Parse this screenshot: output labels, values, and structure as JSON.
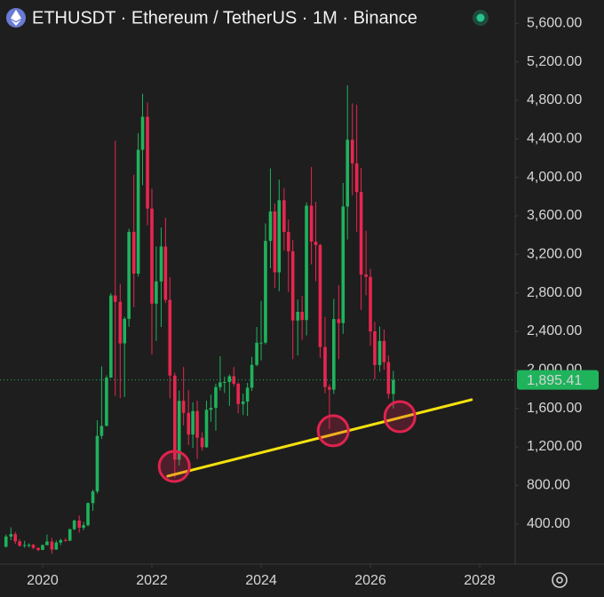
{
  "chart_data": {
    "type": "candlestick",
    "title": "ETHUSDT · Ethereum / TetherUS · 1M · Binance",
    "up_color": "#1fb35c",
    "down_color": "#e8264f",
    "xlim": [
      2019.22,
      2028.65
    ],
    "xticks": [
      2020,
      2022,
      2024,
      2026,
      2028
    ],
    "ylim": [
      0,
      5843
    ],
    "yticks": [
      {
        "value": 400,
        "label": "400.00"
      },
      {
        "value": 800,
        "label": "800.00"
      },
      {
        "value": 1200,
        "label": "1,200.00"
      },
      {
        "value": 1600,
        "label": "1,600.00"
      },
      {
        "value": 2000,
        "label": "2,000.00"
      },
      {
        "value": 2400,
        "label": "2,400.00"
      },
      {
        "value": 2800,
        "label": "2,800.00"
      },
      {
        "value": 3200,
        "label": "3,200.00"
      },
      {
        "value": 3600,
        "label": "3,600.00"
      },
      {
        "value": 4000,
        "label": "4,000.00"
      },
      {
        "value": 4400,
        "label": "4,400.00"
      },
      {
        "value": 4800,
        "label": "4,800.00"
      },
      {
        "value": 5200,
        "label": "5,200.00"
      },
      {
        "value": 5600,
        "label": "5,600.00"
      }
    ],
    "x": [
      2019.33,
      2019.42,
      2019.5,
      2019.58,
      2019.67,
      2019.75,
      2019.83,
      2019.92,
      2020.0,
      2020.08,
      2020.17,
      2020.25,
      2020.33,
      2020.42,
      2020.5,
      2020.58,
      2020.67,
      2020.75,
      2020.83,
      2020.92,
      2021.0,
      2021.08,
      2021.17,
      2021.25,
      2021.33,
      2021.42,
      2021.5,
      2021.58,
      2021.67,
      2021.75,
      2021.83,
      2021.92,
      2022.0,
      2022.08,
      2022.17,
      2022.25,
      2022.33,
      2022.42,
      2022.5,
      2022.58,
      2022.67,
      2022.75,
      2022.83,
      2022.92,
      2023.0,
      2023.08,
      2023.17,
      2023.25,
      2023.33,
      2023.42,
      2023.5,
      2023.58,
      2023.67,
      2023.75,
      2023.83,
      2023.92,
      2024.0,
      2024.08,
      2024.17,
      2024.25,
      2024.33,
      2024.42,
      2024.5,
      2024.58,
      2024.67,
      2024.75,
      2024.83,
      2024.92,
      2025.0,
      2025.08,
      2025.17,
      2025.25,
      2025.33,
      2025.42,
      2025.5,
      2025.58,
      2025.67,
      2025.75,
      2025.83,
      2025.92,
      2026.0,
      2026.08,
      2026.17,
      2026.25,
      2026.33,
      2026.42
    ],
    "open": [
      162,
      268,
      293,
      218,
      172,
      180,
      182,
      151,
      129,
      179,
      217,
      133,
      206,
      231,
      225,
      345,
      434,
      360,
      386,
      616,
      737,
      1314,
      1417,
      1919,
      2773,
      2707,
      2275,
      2530,
      3434,
      3000,
      4287,
      4630,
      3676,
      2688,
      2919,
      3282,
      2727,
      1941,
      1067,
      1678,
      1553,
      1328,
      1572,
      1295,
      1196,
      1585,
      1605,
      1821,
      1870,
      1874,
      1934,
      1856,
      1645,
      1671,
      1815,
      2052,
      2282,
      2283,
      3340,
      3646,
      3014,
      3763,
      3433,
      3232,
      2513,
      2603,
      2518,
      3706,
      3332,
      3297,
      2237,
      1822,
      1794,
      2528,
      2486,
      3697,
      4391,
      4145,
      3848,
      2991,
      2967,
      2400,
      2050,
      2300,
      2080,
      1750
    ],
    "high": [
      290,
      364,
      316,
      240,
      224,
      198,
      194,
      154,
      186,
      288,
      253,
      227,
      246,
      253,
      348,
      444,
      488,
      420,
      622,
      755,
      1476,
      2036,
      1943,
      2798,
      4380,
      2893,
      2551,
      3466,
      4027,
      4460,
      4868,
      4778,
      3883,
      3282,
      3479,
      3581,
      2964,
      1971,
      1785,
      2030,
      1789,
      1664,
      1680,
      1352,
      1680,
      1743,
      1857,
      2142,
      1930,
      1951,
      2029,
      1870,
      1753,
      1865,
      2135,
      2445,
      2717,
      3522,
      4093,
      3730,
      3976,
      3887,
      3563,
      3350,
      2730,
      2769,
      3740,
      4107,
      3745,
      3310,
      2550,
      1850,
      2738,
      2880,
      3941,
      4956,
      4769,
      4755,
      4100,
      3447,
      3050,
      2500,
      2450,
      2420,
      2150,
      1990
    ],
    "low": [
      155,
      230,
      190,
      165,
      152,
      155,
      135,
      116,
      128,
      178,
      90,
      130,
      179,
      216,
      222,
      334,
      309,
      335,
      373,
      535,
      715,
      1282,
      1458,
      1937,
      1728,
      1707,
      1718,
      2447,
      2652,
      2970,
      3919,
      3503,
      2159,
      2300,
      2446,
      2694,
      1703,
      880,
      1006,
      1422,
      1220,
      1190,
      1073,
      1160,
      1191,
      1461,
      1368,
      1785,
      1760,
      1626,
      1830,
      1550,
      1531,
      1521,
      1781,
      2038,
      2100,
      2265,
      3056,
      2852,
      2817,
      3240,
      2810,
      2111,
      2150,
      2310,
      2357,
      3096,
      2920,
      2125,
      1755,
      1385,
      1750,
      2112,
      2373,
      3355,
      3815,
      3435,
      2623,
      2775,
      2250,
      1900,
      1980,
      2000,
      1700,
      1600
    ],
    "close": [
      268,
      293,
      218,
      172,
      180,
      182,
      151,
      129,
      179,
      217,
      133,
      206,
      231,
      225,
      345,
      434,
      360,
      386,
      616,
      737,
      1314,
      1417,
      1919,
      2773,
      2707,
      2275,
      2530,
      3434,
      3000,
      4287,
      4630,
      3676,
      2688,
      2919,
      3282,
      2727,
      1941,
      1067,
      1678,
      1553,
      1328,
      1572,
      1295,
      1196,
      1585,
      1605,
      1821,
      1870,
      1874,
      1934,
      1856,
      1645,
      1671,
      1815,
      2052,
      2282,
      2283,
      3340,
      3646,
      3014,
      3763,
      3433,
      3232,
      2513,
      2603,
      2518,
      3706,
      3332,
      3297,
      2237,
      1822,
      1794,
      2528,
      2486,
      3697,
      4391,
      4145,
      3848,
      2991,
      2967,
      2400,
      2050,
      2300,
      2080,
      1750,
      1895.41
    ],
    "last_price": {
      "value": 1895.41,
      "label": "1,895.41",
      "color": "#1fb35c"
    },
    "trendline": {
      "x": [
        2022.29,
        2027.85
      ],
      "y": [
        896,
        1690
      ],
      "color": "#f5e10f"
    },
    "markers": {
      "x": [
        2022.41,
        2025.32,
        2026.54
      ],
      "y": [
        997,
        1367,
        1514
      ],
      "color": "#e0234e"
    }
  }
}
